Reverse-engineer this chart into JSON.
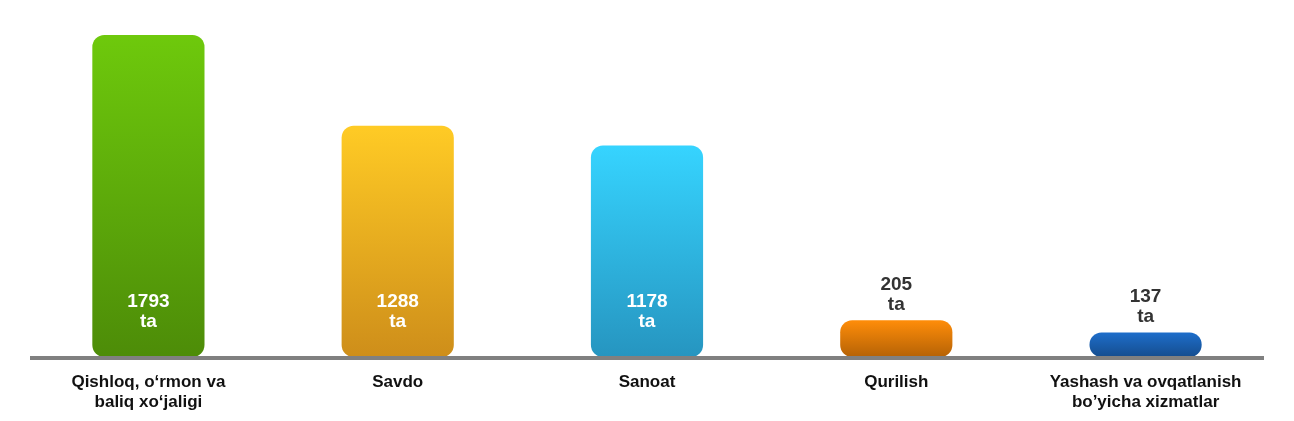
{
  "chart_data": {
    "type": "bar",
    "categories": [
      "Qishloq, o‘rmon va baliq xo‘jaligi",
      "Savdo",
      "Sanoat",
      "Qurilish",
      "Yashash va ovqatlanish bo’yicha xizmatlar"
    ],
    "values": [
      1793,
      1288,
      1178,
      205,
      137
    ],
    "colors": [
      "#5fae0a",
      "#ffb020",
      "#2fb8ee",
      "#e07a08",
      "#1a5fb0"
    ],
    "value_labels": [
      "1793 ta",
      "1288 ta",
      "1178 ta",
      "205 ta",
      "137 ta"
    ]
  }
}
